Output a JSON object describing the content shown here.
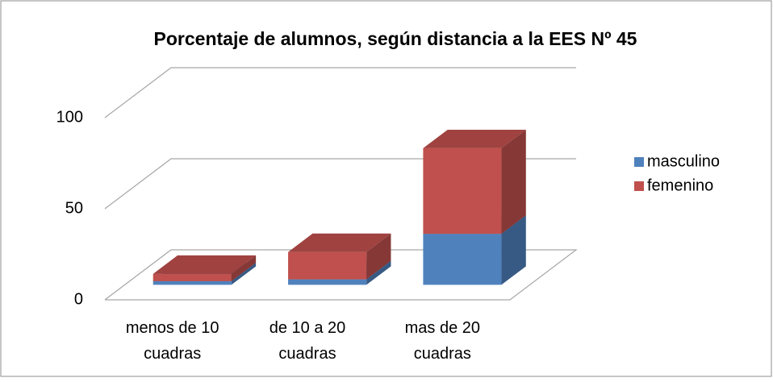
{
  "chart_data": {
    "type": "bar3d_stacked",
    "title": "Porcentaje de alumnos, según distancia a la EES Nº 45",
    "categories": [
      "menos de 10 cuadras",
      "de 10 a 20 cuadras",
      "mas de 20 cuadras"
    ],
    "series": [
      {
        "name": "masculino",
        "color": "#4f81bd",
        "values": [
          2,
          3,
          28
        ]
      },
      {
        "name": "femenino",
        "color": "#c0504d",
        "values": [
          4,
          15,
          47
        ]
      }
    ],
    "ylim": [
      0,
      100
    ],
    "yticks": [
      0,
      50,
      100
    ],
    "grid": true,
    "legend": "right"
  }
}
